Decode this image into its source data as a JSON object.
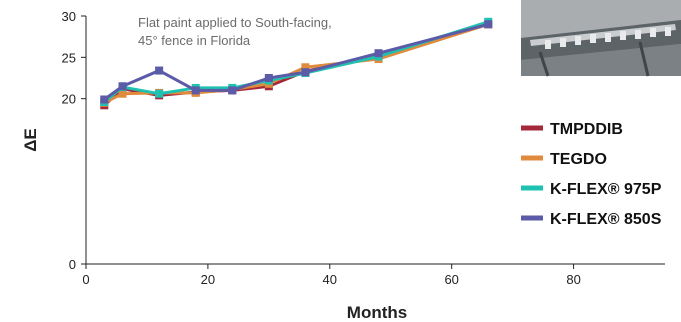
{
  "chart_data": {
    "type": "line",
    "title": "",
    "xlabel": "Months",
    "ylabel": "ΔE",
    "xlim": [
      0,
      95
    ],
    "ylim": [
      0,
      30
    ],
    "x_ticks": [
      0,
      20,
      40,
      60,
      80
    ],
    "y_ticks": [
      0,
      20,
      25,
      30
    ],
    "grid": false,
    "legend_position": "right",
    "annotation": [
      "Flat paint applied to South-facing,",
      "45° fence in Florida"
    ],
    "photo": "outdoor-exposure-fence-photo",
    "series": [
      {
        "name": "TMPDDIB",
        "color": "#a3283c",
        "points": [
          [
            3,
            19.2
          ],
          [
            6,
            21.2
          ],
          [
            12,
            20.4
          ],
          [
            18,
            20.8
          ],
          [
            24,
            21.0
          ],
          [
            30,
            21.5
          ],
          [
            36,
            23.3
          ],
          [
            48,
            25.2
          ],
          [
            66,
            29.0
          ]
        ]
      },
      {
        "name": "TEGDO",
        "color": "#e08a3c",
        "points": [
          [
            3,
            19.5
          ],
          [
            6,
            20.6
          ],
          [
            12,
            20.7
          ],
          [
            18,
            20.7
          ],
          [
            24,
            21.1
          ],
          [
            30,
            21.8
          ],
          [
            36,
            23.8
          ],
          [
            48,
            24.8
          ],
          [
            66,
            29.0
          ]
        ]
      },
      {
        "name": "K-FLEX® 975P",
        "color": "#1fc2b0",
        "points": [
          [
            3,
            19.6
          ],
          [
            6,
            21.4
          ],
          [
            12,
            20.6
          ],
          [
            18,
            21.3
          ],
          [
            24,
            21.3
          ],
          [
            30,
            22.2
          ],
          [
            36,
            23.1
          ],
          [
            48,
            25.1
          ],
          [
            66,
            29.3
          ]
        ]
      },
      {
        "name": "K-FLEX® 850S",
        "color": "#5b5ba7",
        "points": [
          [
            3,
            19.9
          ],
          [
            6,
            21.5
          ],
          [
            12,
            23.4
          ],
          [
            18,
            21.0
          ],
          [
            24,
            21.0
          ],
          [
            30,
            22.5
          ],
          [
            36,
            23.2
          ],
          [
            48,
            25.5
          ],
          [
            66,
            29.0
          ]
        ]
      }
    ]
  }
}
